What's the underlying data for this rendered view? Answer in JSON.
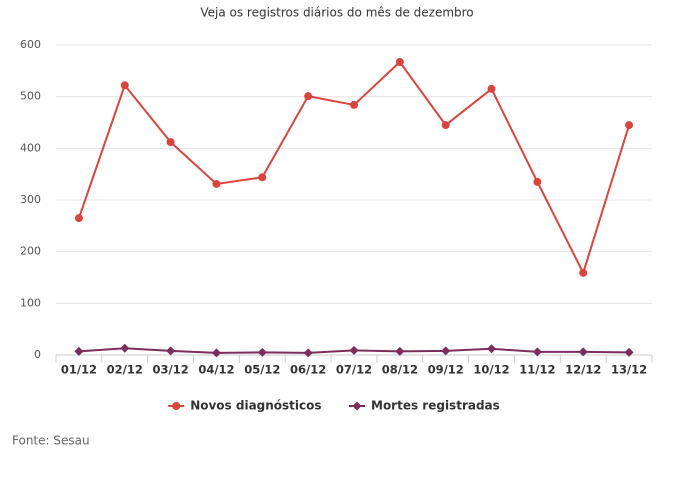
{
  "chart_data": {
    "type": "line",
    "title": "Veja os registros diários do mês de dezembro",
    "categories": [
      "01/12",
      "02/12",
      "03/12",
      "04/12",
      "05/12",
      "06/12",
      "07/12",
      "08/12",
      "09/12",
      "10/12",
      "11/12",
      "12/12",
      "13/12"
    ],
    "series": [
      {
        "name": "Novos diagnósticos",
        "color": "#d9453d",
        "marker": "circle",
        "values": [
          265,
          522,
          412,
          331,
          344,
          501,
          484,
          567,
          445,
          515,
          335,
          159,
          445
        ]
      },
      {
        "name": "Mortes registradas",
        "color": "#7b2d5e",
        "marker": "diamond",
        "values": [
          7,
          13,
          8,
          4,
          5,
          4,
          9,
          7,
          8,
          12,
          6,
          6,
          5
        ]
      }
    ],
    "ylim": [
      0,
      600
    ],
    "yticks": [
      0,
      100,
      200,
      300,
      400,
      500,
      600
    ],
    "grid": true,
    "legend": "bottom",
    "source": "Fonte: Sesau"
  }
}
